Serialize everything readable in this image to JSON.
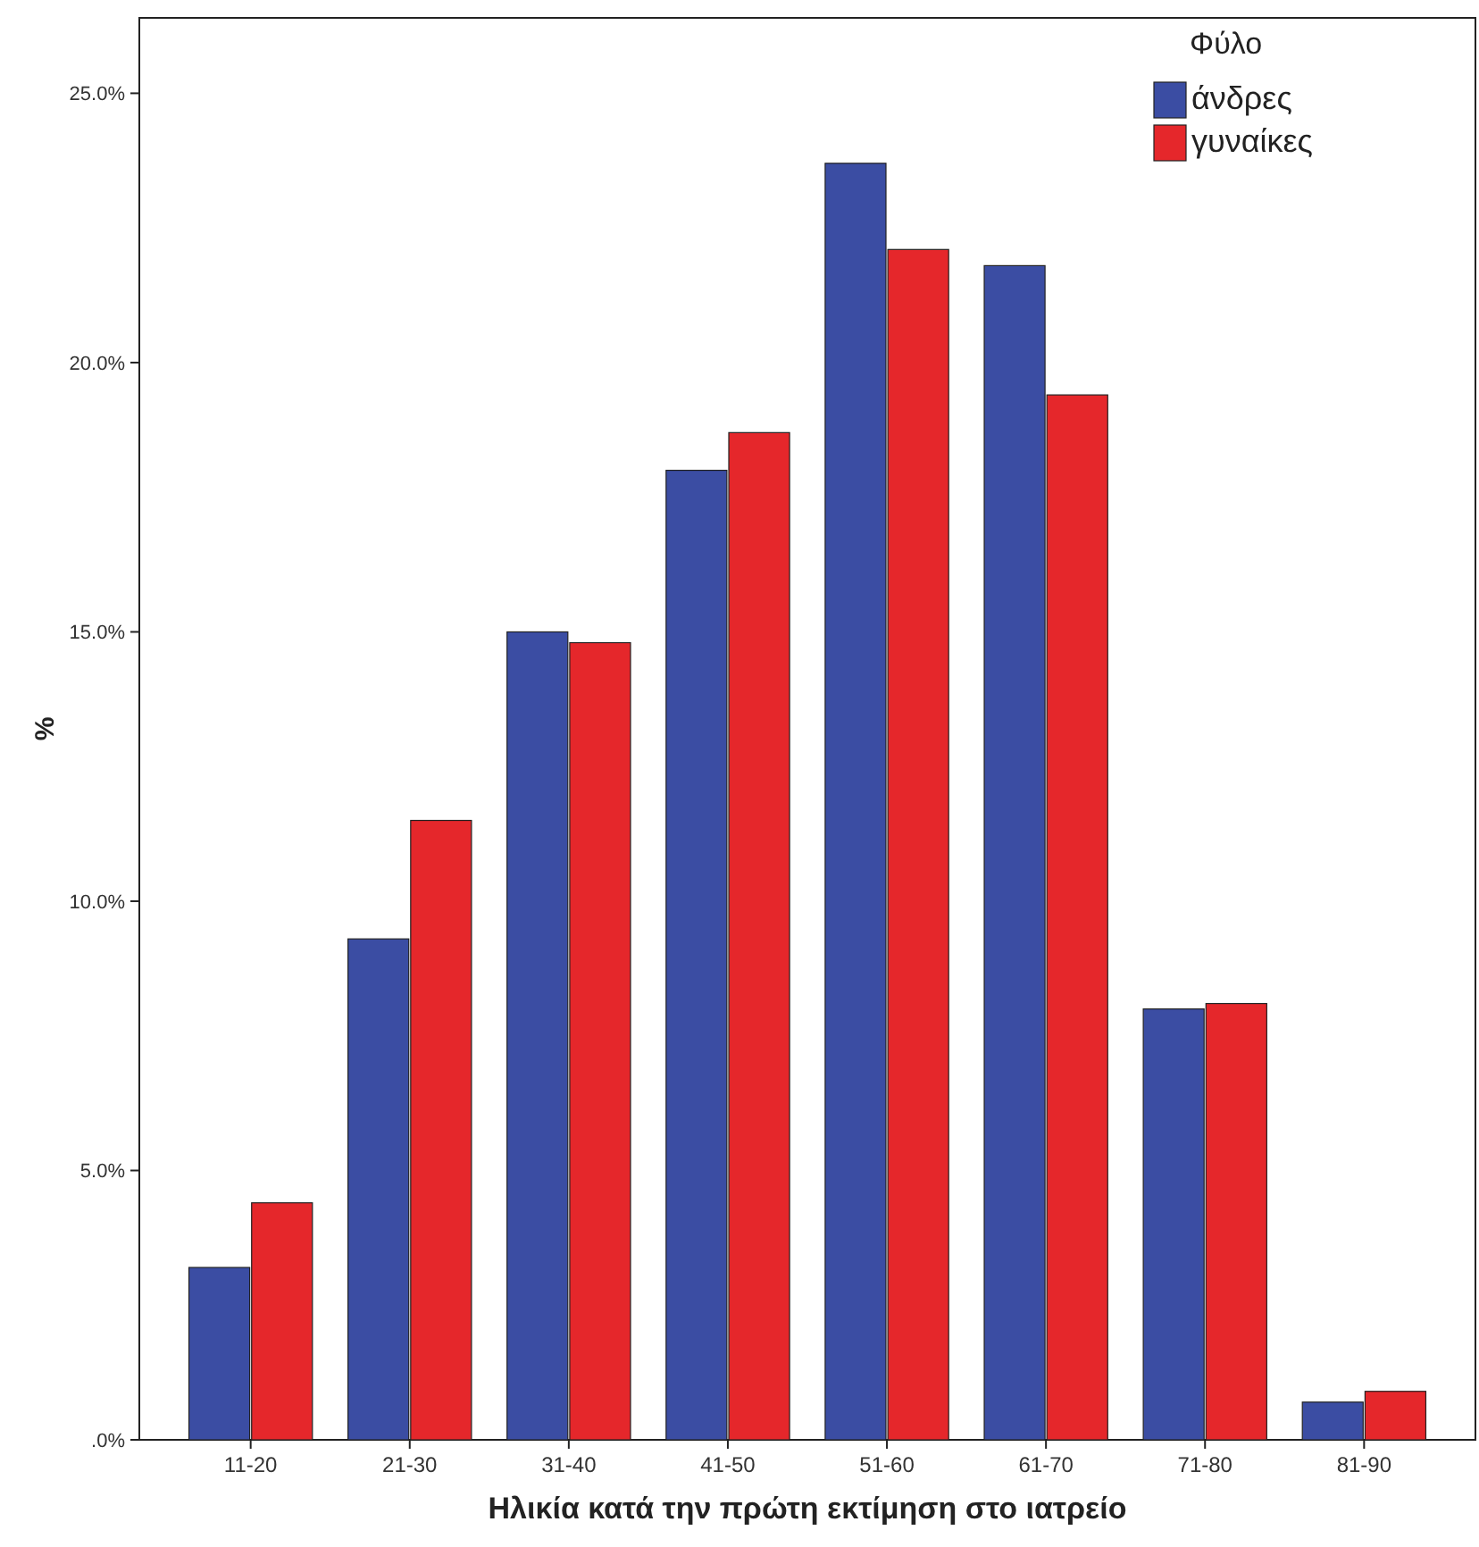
{
  "chart_data": {
    "type": "bar",
    "xlabel": "Ηλικία κατά την πρώτη εκτίμηση στο ιατρείο",
    "ylabel": "%",
    "legend_title": "Φύλο",
    "legend": "top right",
    "grid": false,
    "categories": [
      "11-20",
      "21-30",
      "31-40",
      "41-50",
      "51-60",
      "61-70",
      "71-80",
      "81-90"
    ],
    "ylim": [
      0,
      26.4
    ],
    "yticks": [
      {
        "value": 0,
        "label": ".0%"
      },
      {
        "value": 5,
        "label": "5.0%"
      },
      {
        "value": 10,
        "label": "10.0%"
      },
      {
        "value": 15,
        "label": "15.0%"
      },
      {
        "value": 20,
        "label": "20.0%"
      },
      {
        "value": 25,
        "label": "25.0%"
      }
    ],
    "series": [
      {
        "name": "άνδρες",
        "color": "#3b4da3",
        "values": [
          3.2,
          9.3,
          15.0,
          18.0,
          23.7,
          21.8,
          8.0,
          0.7
        ]
      },
      {
        "name": "γυναίκες",
        "color": "#e5272b",
        "values": [
          4.4,
          11.5,
          14.8,
          18.7,
          22.1,
          19.4,
          8.1,
          0.9
        ]
      }
    ]
  }
}
